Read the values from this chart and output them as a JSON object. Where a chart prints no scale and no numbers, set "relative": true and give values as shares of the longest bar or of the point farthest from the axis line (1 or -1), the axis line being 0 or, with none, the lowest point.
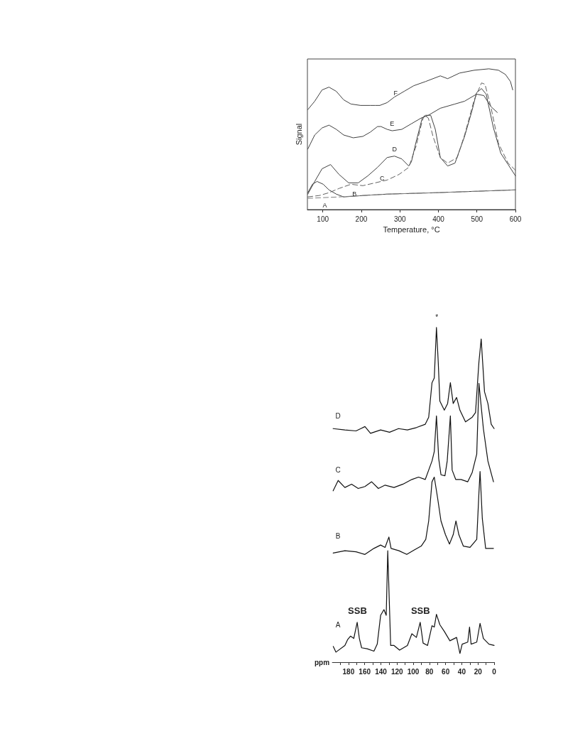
{
  "chart_data": [
    {
      "type": "line",
      "xlabel": "Temperature, °C",
      "ylabel": "Signal",
      "relative": true,
      "marker": "none",
      "grid": false,
      "xlim": [
        60,
        600
      ],
      "xticks": [
        100,
        200,
        300,
        400,
        500,
        600
      ],
      "series": [
        {
          "name": "F",
          "color": "#404040",
          "line_style": "solid",
          "x": [
            61,
            79,
            98,
            116,
            135,
            154,
            173,
            198,
            223,
            236,
            248,
            267,
            286,
            311,
            336,
            367,
            405,
            424,
            455,
            493,
            531,
            556,
            574,
            587,
            593
          ],
          "values": [
            0.71,
            0.77,
            0.85,
            0.87,
            0.84,
            0.78,
            0.75,
            0.74,
            0.74,
            0.74,
            0.74,
            0.76,
            0.8,
            0.84,
            0.88,
            0.91,
            0.95,
            0.93,
            0.97,
            0.99,
            1,
            0.99,
            0.96,
            0.91,
            0.85
          ]
        },
        {
          "name": "E",
          "color": "#404040",
          "line_style": "solid",
          "x": [
            61,
            79,
            98,
            116,
            135,
            154,
            179,
            204,
            223,
            242,
            251,
            267,
            280,
            305,
            330,
            355,
            374,
            405,
            443,
            468,
            499,
            518,
            537,
            553
          ],
          "values": [
            0.43,
            0.53,
            0.58,
            0.6,
            0.57,
            0.53,
            0.51,
            0.52,
            0.55,
            0.59,
            0.59,
            0.57,
            0.56,
            0.57,
            0.61,
            0.65,
            0.67,
            0.72,
            0.75,
            0.77,
            0.82,
            0.81,
            0.73,
            0.69
          ]
        },
        {
          "name": "D",
          "color": "#404040",
          "line_style": "solid",
          "x": [
            61,
            79,
            98,
            120,
            142,
            167,
            192,
            217,
            242,
            267,
            286,
            305,
            323,
            330,
            342,
            358,
            367,
            380,
            392,
            405,
            424,
            443,
            468,
            487,
            499,
            512,
            524,
            543,
            562,
            581,
            600
          ],
          "values": [
            0.11,
            0.2,
            0.29,
            0.32,
            0.25,
            0.19,
            0.19,
            0.24,
            0.3,
            0.37,
            0.38,
            0.36,
            0.31,
            0.34,
            0.48,
            0.65,
            0.67,
            0.67,
            0.57,
            0.37,
            0.31,
            0.33,
            0.52,
            0.7,
            0.83,
            0.86,
            0.82,
            0.58,
            0.4,
            0.32,
            0.24
          ]
        },
        {
          "name": "C",
          "color": "#606060",
          "line_style": "dashed",
          "x": [
            61,
            91,
            116,
            142,
            173,
            204,
            236,
            267,
            298,
            323,
            342,
            358,
            364,
            374,
            386,
            405,
            424,
            449,
            468,
            493,
            512,
            521,
            537,
            556,
            581,
            600
          ],
          "values": [
            0.09,
            0.1,
            0.12,
            0.15,
            0.18,
            0.17,
            0.19,
            0.21,
            0.25,
            0.3,
            0.45,
            0.63,
            0.67,
            0.65,
            0.52,
            0.37,
            0.33,
            0.37,
            0.53,
            0.78,
            0.9,
            0.89,
            0.72,
            0.47,
            0.33,
            0.28
          ]
        },
        {
          "name": "B",
          "color": "#404040",
          "line_style": "solid",
          "x": [
            61,
            73,
            85,
            101,
            116,
            135,
            154,
            204,
            267,
            393,
            600
          ],
          "values": [
            0.12,
            0.18,
            0.2,
            0.18,
            0.14,
            0.11,
            0.09,
            0.1,
            0.11,
            0.12,
            0.14
          ]
        },
        {
          "name": "A",
          "color": "#808080",
          "line_style": "dashed",
          "x": [
            61,
            142,
            267,
            393,
            600
          ],
          "values": [
            0.08,
            0.09,
            0.11,
            0.12,
            0.14
          ]
        }
      ]
    },
    {
      "type": "line",
      "xlabel": "ppm",
      "relative": true,
      "marker": "none",
      "grid": false,
      "xlim": [
        200,
        0
      ],
      "xticks": [
        {
          "value": 190,
          "label": null
        },
        180,
        {
          "value": 170,
          "label": null
        },
        160,
        {
          "value": 150,
          "label": null
        },
        140,
        {
          "value": 130,
          "label": null
        },
        120,
        {
          "value": 110,
          "label": null
        },
        100,
        {
          "value": 90,
          "label": null
        },
        80,
        {
          "value": 70,
          "label": null
        },
        60,
        {
          "value": 50,
          "label": null
        },
        40,
        {
          "value": 30,
          "label": null
        },
        20,
        {
          "value": 10,
          "label": null
        },
        0
      ],
      "series": [
        {
          "name": "D",
          "color": "#111111",
          "line_style": "solid",
          "x": [
            199,
            184.5,
            170.7,
            159.7,
            152.8,
            140.3,
            129.3,
            118.2,
            107.2,
            96.1,
            85.1,
            80.9,
            76.8,
            74,
            71.3,
            69.1,
            67.1,
            61.6,
            57.5,
            54.1,
            50.6,
            46.4,
            42.3,
            35.4,
            27.1,
            23,
            18.8,
            16,
            11.9,
            7.7,
            3.6,
            0
          ],
          "values": [
            0.698,
            0.694,
            0.691,
            0.704,
            0.684,
            0.694,
            0.687,
            0.698,
            0.694,
            0.701,
            0.711,
            0.732,
            0.835,
            0.849,
            1,
            0.897,
            0.78,
            0.753,
            0.773,
            0.835,
            0.773,
            0.791,
            0.753,
            0.718,
            0.732,
            0.746,
            0.897,
            0.966,
            0.808,
            0.773,
            0.711,
            0.698
          ]
        },
        {
          "name": "C",
          "color": "#111111",
          "line_style": "solid",
          "x": [
            199,
            192.8,
            184.5,
            176.2,
            168,
            159.7,
            151.4,
            143.1,
            134.8,
            123.8,
            112.7,
            101.7,
            93.4,
            85.1,
            80.9,
            76.8,
            74,
            71.3,
            68.5,
            65.7,
            60.8,
            58,
            54.1,
            51.9,
            47.5,
            40.9,
            32.6,
            27.1,
            21.5,
            18.8,
            13.3,
            7.7,
            0.8
          ],
          "values": [
            0.512,
            0.543,
            0.522,
            0.532,
            0.519,
            0.525,
            0.539,
            0.519,
            0.529,
            0.522,
            0.532,
            0.546,
            0.553,
            0.546,
            0.574,
            0.601,
            0.629,
            0.736,
            0.608,
            0.56,
            0.557,
            0.601,
            0.736,
            0.574,
            0.546,
            0.546,
            0.539,
            0.567,
            0.622,
            0.833,
            0.698,
            0.601,
            0.539
          ]
        },
        {
          "name": "B",
          "color": "#111111",
          "line_style": "solid",
          "x": [
            199,
            184.5,
            170.7,
            159.7,
            148.6,
            140.3,
            134.8,
            130.1,
            127.4,
            117.7,
            108,
            98.3,
            90.1,
            84.5,
            80.9,
            76.8,
            74,
            69.9,
            65.7,
            60.2,
            55.2,
            50.6,
            47.2,
            43.6,
            38.1,
            29.8,
            21.5,
            18.8,
            17.4,
            14.6,
            10.5,
            0.8
          ],
          "values": [
            0.326,
            0.333,
            0.33,
            0.322,
            0.34,
            0.35,
            0.343,
            0.374,
            0.34,
            0.333,
            0.322,
            0.336,
            0.347,
            0.367,
            0.422,
            0.539,
            0.553,
            0.491,
            0.422,
            0.381,
            0.353,
            0.381,
            0.422,
            0.381,
            0.347,
            0.343,
            0.367,
            0.505,
            0.57,
            0.429,
            0.34,
            0.34
          ]
        },
        {
          "name": "A",
          "color": "#111111",
          "line_style": "solid",
          "x": [
            198.9,
            195.6,
            184.5,
            181.2,
            177.6,
            173.5,
            169.3,
            166.6,
            163.8,
            156.9,
            148.6,
            144.5,
            140.3,
            136.2,
            133.4,
            131.5,
            127.9,
            123.8,
            116.9,
            107.2,
            101.7,
            96.1,
            91.4,
            87.8,
            82.3,
            76.8,
            74,
            71.3,
            67.1,
            61.6,
            54.7,
            46.4,
            42.3,
            39.5,
            32.6,
            30.4,
            28.5,
            21.5,
            17.4,
            13.3,
            6.4,
            0
          ],
          "values": [
            0.047,
            0.03,
            0.05,
            0.067,
            0.078,
            0.071,
            0.119,
            0.071,
            0.043,
            0.04,
            0.033,
            0.054,
            0.14,
            0.157,
            0.14,
            0.333,
            0.05,
            0.05,
            0.036,
            0.05,
            0.085,
            0.074,
            0.119,
            0.057,
            0.05,
            0.109,
            0.105,
            0.143,
            0.112,
            0.092,
            0.064,
            0.074,
            0.026,
            0.054,
            0.06,
            0.105,
            0.054,
            0.06,
            0.116,
            0.071,
            0.054,
            0.05
          ]
        }
      ],
      "annotations": [
        "*",
        "SSB",
        "SSB"
      ]
    }
  ]
}
